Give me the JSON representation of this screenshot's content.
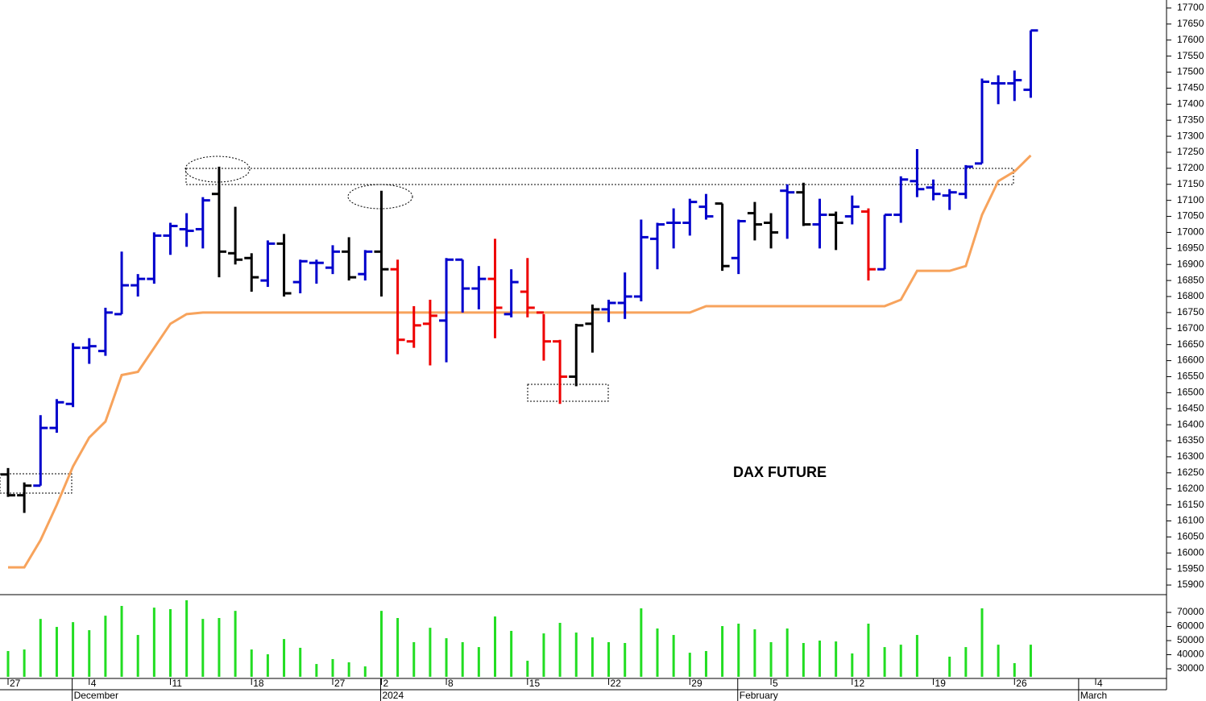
{
  "chart_data": {
    "type": "ohlc",
    "annotation": "DAX FUTURE",
    "categories": [
      "27",
      null,
      null,
      null,
      null,
      "4",
      null,
      null,
      null,
      null,
      "11",
      null,
      null,
      null,
      null,
      "18",
      null,
      null,
      null,
      null,
      "27",
      null,
      null,
      "2",
      null,
      null,
      null,
      "8",
      null,
      null,
      null,
      null,
      "15",
      null,
      null,
      null,
      null,
      "22",
      null,
      null,
      null,
      null,
      "29",
      null,
      null,
      null,
      null,
      "5",
      null,
      null,
      null,
      null,
      "12",
      null,
      null,
      null,
      null,
      "19",
      null,
      null,
      null,
      null,
      "26",
      null,
      null,
      null,
      null,
      "4",
      null,
      null,
      null,
      null
    ],
    "month_labels": [
      null,
      null,
      null,
      null,
      "December",
      null,
      null,
      null,
      null,
      null,
      null,
      null,
      null,
      null,
      null,
      null,
      null,
      null,
      null,
      null,
      null,
      null,
      null,
      "2024",
      null,
      null,
      null,
      null,
      null,
      null,
      null,
      null,
      null,
      null,
      null,
      null,
      null,
      null,
      null,
      null,
      null,
      null,
      null,
      null,
      null,
      "February",
      null,
      null,
      null,
      null,
      null,
      null,
      null,
      null,
      null,
      null,
      null,
      null,
      null,
      null,
      null,
      null,
      null,
      null,
      null,
      null,
      "March",
      null,
      null,
      null,
      null,
      null
    ],
    "open": [
      16245,
      16180,
      16210,
      16390,
      16465,
      16640,
      16630,
      16745,
      16835,
      16855,
      16990,
      17010,
      17010,
      17120,
      16935,
      16920,
      16850,
      16965,
      16845,
      16905,
      16890,
      16940,
      16870,
      16940,
      16885,
      16660,
      16715,
      16725,
      16915,
      16825,
      16855,
      16745,
      16815,
      16750,
      16660,
      16550,
      16715,
      16760,
      16780,
      16800,
      16980,
      17030,
      17030,
      17080,
      17090,
      16920,
      17060,
      17030,
      17130,
      17125,
      17025,
      17055,
      17050,
      17065,
      16885,
      17055,
      17160,
      17140,
      17115,
      17120,
      17215,
      17465,
      17465,
      17445,
      null,
      null,
      null,
      null,
      null,
      null,
      null,
      null
    ],
    "high": [
      16265,
      16220,
      16430,
      16480,
      16655,
      16670,
      16765,
      16940,
      16870,
      17000,
      17030,
      17060,
      17110,
      17205,
      17080,
      16935,
      16975,
      16995,
      16915,
      16915,
      16960,
      16985,
      16945,
      17130,
      16915,
      16770,
      16790,
      16920,
      16915,
      16895,
      16980,
      16885,
      16920,
      16745,
      16665,
      16715,
      16775,
      16790,
      16875,
      17040,
      17030,
      17075,
      17105,
      17120,
      17090,
      17040,
      17095,
      17060,
      17150,
      17155,
      17105,
      17065,
      17115,
      17075,
      17055,
      17175,
      17260,
      17165,
      17135,
      17210,
      17480,
      17490,
      17505,
      17630,
      null,
      null,
      null,
      null,
      null,
      null,
      null,
      null
    ],
    "low": [
      16175,
      16125,
      16210,
      16375,
      16455,
      16590,
      16615,
      16745,
      16800,
      16840,
      16930,
      16955,
      16950,
      16860,
      16900,
      16815,
      16830,
      16800,
      16810,
      16840,
      16870,
      16850,
      16850,
      16800,
      16620,
      16640,
      16585,
      16595,
      16750,
      16760,
      16670,
      16735,
      16735,
      16600,
      16465,
      16520,
      16625,
      16720,
      16730,
      16785,
      16885,
      16950,
      16990,
      17040,
      16880,
      16870,
      16975,
      16950,
      16980,
      17020,
      16950,
      16945,
      17025,
      16850,
      16885,
      17030,
      17110,
      17100,
      17070,
      17105,
      17215,
      17400,
      17410,
      17420,
      null,
      null,
      null,
      null,
      null,
      null,
      null,
      null
    ],
    "close": [
      16180,
      16210,
      16390,
      16470,
      16640,
      16645,
      16750,
      16835,
      16855,
      16990,
      17020,
      17005,
      17100,
      16940,
      16915,
      16860,
      16965,
      16810,
      16910,
      16905,
      16940,
      16860,
      16940,
      16885,
      16665,
      16710,
      16740,
      16915,
      16825,
      16855,
      16765,
      16845,
      16765,
      16660,
      16550,
      16710,
      16760,
      16780,
      16800,
      16985,
      17025,
      17030,
      17095,
      17050,
      16895,
      17035,
      17025,
      17000,
      17125,
      17025,
      17055,
      17030,
      17080,
      16885,
      17055,
      17165,
      17135,
      17120,
      17125,
      17205,
      17470,
      17465,
      17475,
      17630,
      null,
      null,
      null,
      null,
      null,
      null,
      null,
      null
    ],
    "bar_colors": [
      "#000000",
      "#000000",
      "#0000cc",
      "#0000cc",
      "#0000cc",
      "#0000cc",
      "#0000cc",
      "#0000cc",
      "#0000cc",
      "#0000cc",
      "#0000cc",
      "#0000cc",
      "#0000cc",
      "#000000",
      "#000000",
      "#000000",
      "#0000cc",
      "#000000",
      "#0000cc",
      "#0000cc",
      "#0000cc",
      "#000000",
      "#0000cc",
      "#000000",
      "#ee0000",
      "#ee0000",
      "#ee0000",
      "#0000cc",
      "#0000cc",
      "#0000cc",
      "#ee0000",
      "#0000cc",
      "#ee0000",
      "#ee0000",
      "#ee0000",
      "#000000",
      "#000000",
      "#0000cc",
      "#0000cc",
      "#0000cc",
      "#0000cc",
      "#0000cc",
      "#0000cc",
      "#0000cc",
      "#000000",
      "#0000cc",
      "#000000",
      "#000000",
      "#0000cc",
      "#000000",
      "#0000cc",
      "#000000",
      "#0000cc",
      "#ee0000",
      "#0000cc",
      "#0000cc",
      "#0000cc",
      "#0000cc",
      "#0000cc",
      "#0000cc",
      "#0000cc",
      "#0000cc",
      "#0000cc",
      "#0000cc",
      null,
      null,
      null,
      null,
      null,
      null,
      null,
      null
    ],
    "line": {
      "color": "#f7a35c",
      "values": [
        15955,
        15955,
        16040,
        16150,
        16270,
        16360,
        16410,
        16555,
        16565,
        16640,
        16715,
        16745,
        16750,
        16750,
        16750,
        16750,
        16750,
        16750,
        16750,
        16750,
        16750,
        16750,
        16750,
        16750,
        16750,
        16750,
        16750,
        16750,
        16750,
        16750,
        16750,
        16750,
        16750,
        16750,
        16750,
        16750,
        16750,
        16750,
        16750,
        16750,
        16750,
        16750,
        16750,
        16770,
        16770,
        16770,
        16770,
        16770,
        16770,
        16770,
        16770,
        16770,
        16770,
        16770,
        16770,
        16790,
        16880,
        16880,
        16880,
        16895,
        17055,
        17160,
        17190,
        17240,
        null,
        null,
        null,
        null,
        null,
        null,
        null,
        null
      ]
    },
    "ylim": [
      15870,
      17725
    ],
    "yticks": [
      15900,
      15950,
      16000,
      16050,
      16100,
      16150,
      16200,
      16250,
      16300,
      16350,
      16400,
      16450,
      16500,
      16550,
      16600,
      16650,
      16700,
      16750,
      16800,
      16850,
      16900,
      16950,
      17000,
      17050,
      17100,
      17150,
      17200,
      17250,
      17300,
      17350,
      17400,
      17450,
      17500,
      17550,
      17600,
      17650,
      17700
    ],
    "volume": {
      "color": "#22dd22",
      "values": [
        42600,
        43700,
        65400,
        59700,
        63100,
        57400,
        67700,
        74600,
        54000,
        73400,
        72300,
        78600,
        65400,
        66000,
        71100,
        43700,
        40300,
        51100,
        44900,
        33400,
        36900,
        34600,
        31700,
        71100,
        66000,
        48900,
        59100,
        51700,
        48900,
        45400,
        67100,
        56900,
        35700,
        55100,
        62600,
        55700,
        52300,
        48900,
        48300,
        72900,
        58600,
        54000,
        41400,
        42600,
        60300,
        62000,
        58000,
        48900,
        58600,
        48300,
        50000,
        49400,
        40900,
        62000,
        45400,
        47100,
        54000,
        null,
        38600,
        45400,
        72900,
        47100,
        34000,
        47100,
        null,
        null,
        null,
        null,
        null,
        null,
        null,
        null
      ],
      "ylim": [
        24300,
        82600
      ],
      "yticks": [
        30000,
        40000,
        50000,
        60000,
        70000
      ]
    }
  }
}
